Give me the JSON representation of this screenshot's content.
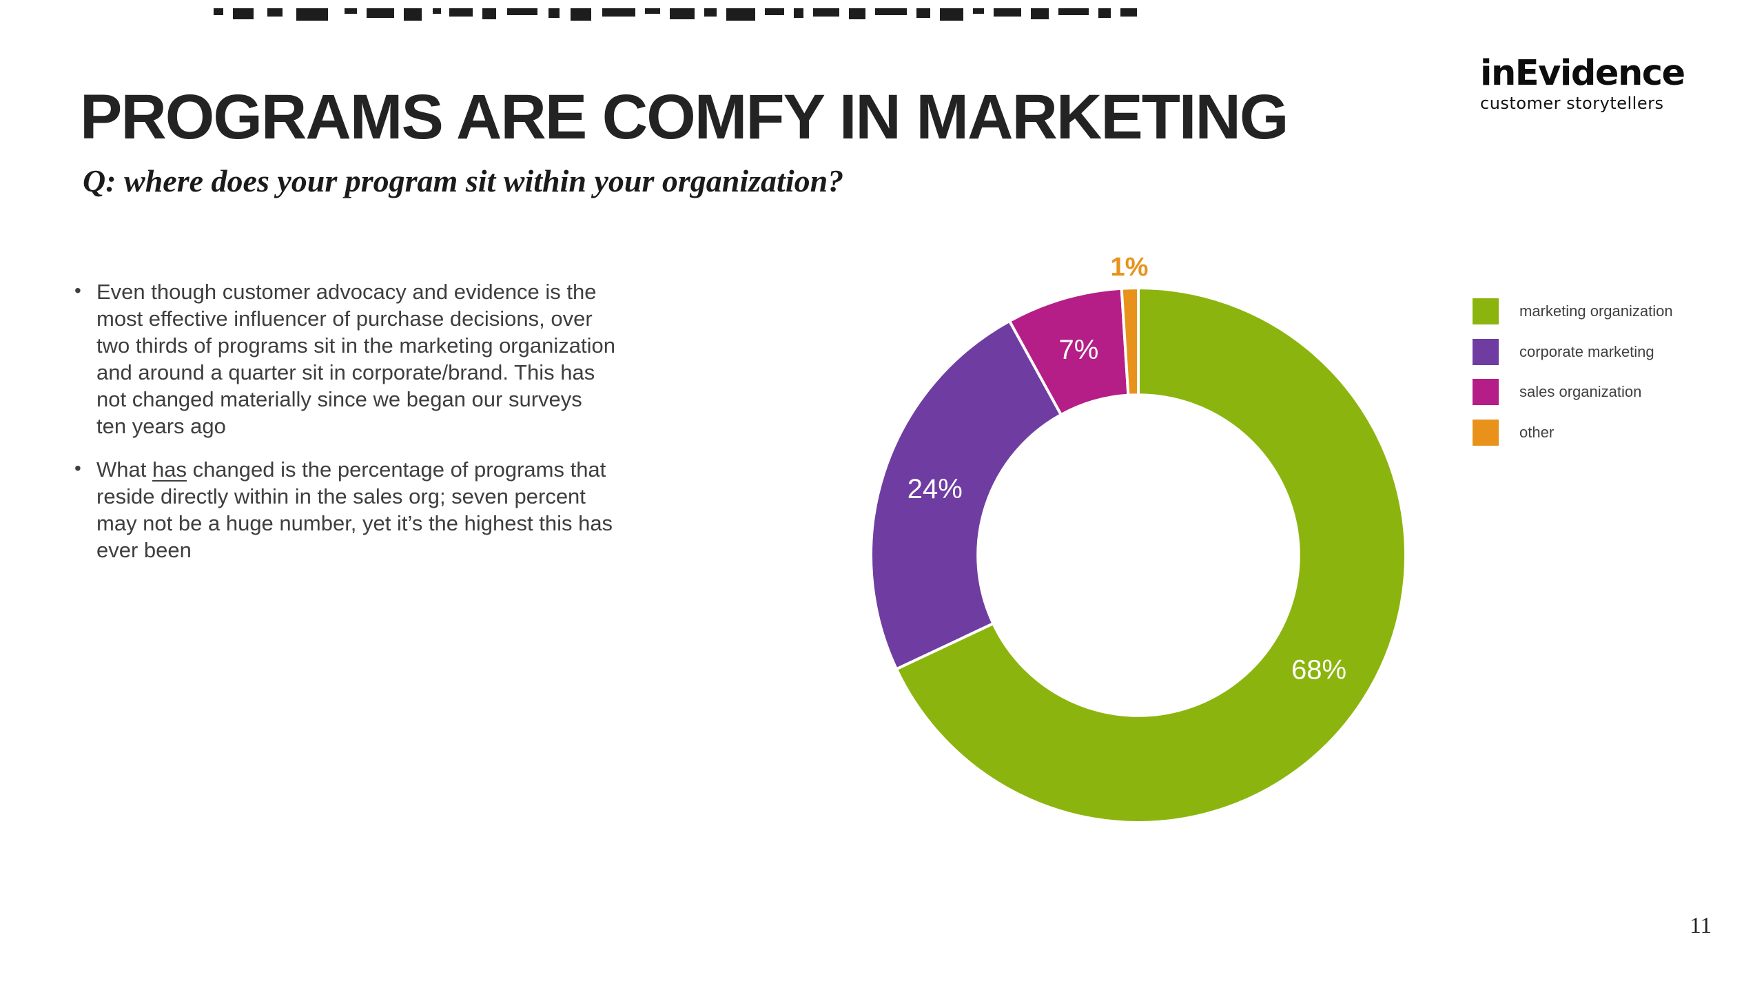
{
  "slide": {
    "title": "PROGRAMS ARE COMFY IN MARKETING",
    "subtitle": "Q: where does your program sit within your organization?",
    "page_number": "11"
  },
  "logo": {
    "name": "inEvidence",
    "tagline": "customer storytellers"
  },
  "bullets": {
    "b1": "Even though customer advocacy and evidence is the most effective influencer of purchase decisions, over two thirds of programs sit in the marketing organization and around a quarter sit in corporate/brand. This has not changed materially since we began our surveys ten years ago",
    "b2_pre": "What ",
    "b2_underlined": "has",
    "b2_post": " changed is the percentage of programs that reside directly within in the sales org; seven percent may not be a huge number, yet it’s the highest this has ever been"
  },
  "chart_data": {
    "type": "pie",
    "subtype": "donut",
    "categories": [
      "marketing organization",
      "corporate marketing",
      "sales organization",
      "other"
    ],
    "values": [
      68,
      24,
      7,
      1
    ],
    "data_labels": [
      "68%",
      "24%",
      "7%",
      "1%"
    ],
    "colors": [
      "#8bb50e",
      "#6f3da2",
      "#b41e86",
      "#e8921c"
    ],
    "start_angle_deg": 0,
    "direction": "clockwise",
    "donut_hole_ratio": 0.6,
    "separator_color": "#ffffff",
    "legend_position": "right",
    "inside_label_color": "#ffffff",
    "outside_label_color": "#e8921c"
  },
  "artifacts": {
    "top_dashes": [
      [
        310,
        14,
        10
      ],
      [
        338,
        30,
        16
      ],
      [
        388,
        22,
        12
      ],
      [
        430,
        46,
        18
      ],
      [
        500,
        18,
        8
      ],
      [
        532,
        40,
        14
      ],
      [
        586,
        26,
        18
      ],
      [
        628,
        12,
        8
      ],
      [
        652,
        34,
        12
      ],
      [
        700,
        20,
        16
      ],
      [
        736,
        44,
        10
      ],
      [
        796,
        16,
        14
      ],
      [
        828,
        30,
        18
      ],
      [
        874,
        48,
        12
      ],
      [
        936,
        22,
        8
      ],
      [
        972,
        36,
        16
      ],
      [
        1022,
        18,
        12
      ],
      [
        1054,
        42,
        18
      ],
      [
        1110,
        28,
        10
      ],
      [
        1152,
        14,
        14
      ],
      [
        1180,
        38,
        12
      ],
      [
        1232,
        24,
        16
      ],
      [
        1270,
        46,
        10
      ],
      [
        1330,
        20,
        14
      ],
      [
        1364,
        34,
        18
      ],
      [
        1412,
        16,
        8
      ],
      [
        1442,
        40,
        12
      ],
      [
        1496,
        26,
        16
      ],
      [
        1536,
        44,
        10
      ],
      [
        1594,
        18,
        14
      ],
      [
        1626,
        24,
        12
      ]
    ]
  }
}
